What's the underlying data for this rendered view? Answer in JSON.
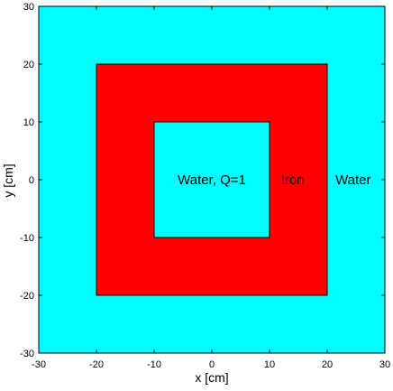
{
  "chart_data": {
    "type": "diagram",
    "xlabel": "x [cm]",
    "ylabel": "y [cm]",
    "xlim": [
      -30,
      30
    ],
    "ylim": [
      -30,
      30
    ],
    "xticks": [
      -30,
      -20,
      -10,
      0,
      10,
      20,
      30
    ],
    "yticks": [
      -30,
      -20,
      -10,
      0,
      10,
      20,
      30
    ],
    "xtick_labels": [
      "-30",
      "-20",
      "-10",
      "0",
      "10",
      "20",
      "30"
    ],
    "ytick_labels": [
      "-30",
      "-20",
      "-10",
      "0",
      "10",
      "20",
      "30"
    ],
    "grid": false,
    "regions": [
      {
        "name": "outer-water",
        "label": "Water",
        "material": "Water",
        "x_range": [
          -30,
          30
        ],
        "y_range": [
          -30,
          30
        ],
        "color": "#00ffff"
      },
      {
        "name": "iron-shell",
        "label": "Iron",
        "material": "Iron",
        "x_range": [
          -20,
          20
        ],
        "y_range": [
          -20,
          20
        ],
        "color": "#ff0000"
      },
      {
        "name": "inner-water",
        "label": "Water, Q=1",
        "material": "Water",
        "source_strength": 1,
        "x_range": [
          -10,
          10
        ],
        "y_range": [
          -10,
          10
        ],
        "color": "#00ffff"
      }
    ],
    "annotations": [
      {
        "text": "Water, Q=1",
        "x": 0,
        "y": 0
      },
      {
        "text": "Iron",
        "x": 14,
        "y": 0
      },
      {
        "text": "Water",
        "x": 24.5,
        "y": 0
      }
    ]
  }
}
